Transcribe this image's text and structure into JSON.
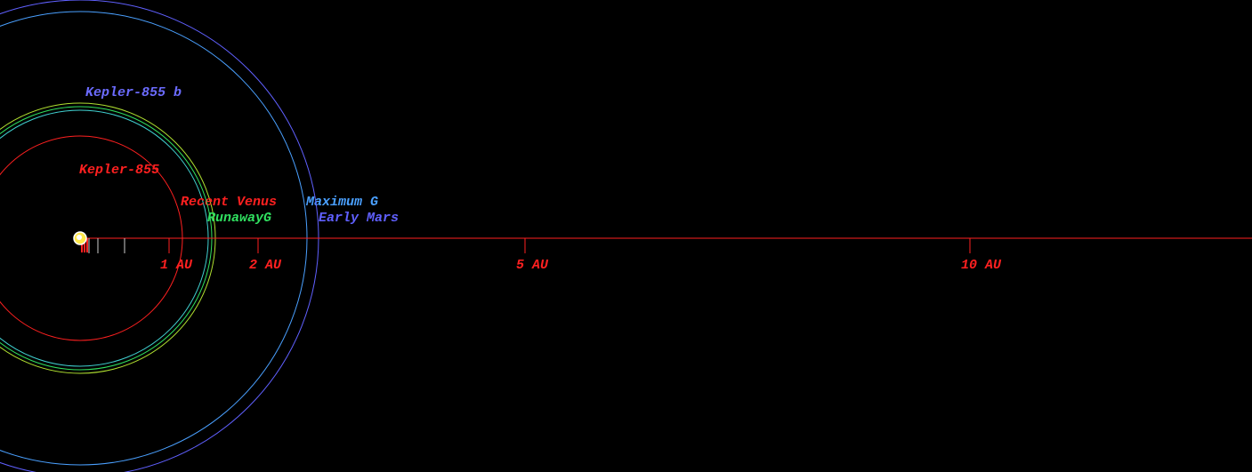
{
  "system": {
    "star": "Kepler-855",
    "planet": "Kepler-855 b",
    "zones": [
      {
        "label": "Recent Venus",
        "color": "#ff2020",
        "radius": 1.15
      },
      {
        "label": "RunawayG",
        "color": "#30e060",
        "radius": 1.48
      },
      {
        "label": "Maximum G",
        "color": "#4aa0ff",
        "radius": 2.55
      },
      {
        "label": "Early Mars",
        "color": "#6060ff",
        "radius": 2.68
      }
    ],
    "orbits": [
      {
        "color": "#40d0d0",
        "radius": 1.44
      },
      {
        "color": "#b0e030",
        "radius": 1.52
      }
    ],
    "axis": {
      "color": "#ff2020",
      "ticks": [
        0.1,
        0.2,
        0.5,
        {
          "value": 1,
          "label": "1 AU"
        },
        {
          "value": 2,
          "label": "2 AU"
        },
        {
          "value": 5,
          "label": "5 AU"
        },
        {
          "value": 10,
          "label": "10 AU"
        }
      ]
    }
  }
}
